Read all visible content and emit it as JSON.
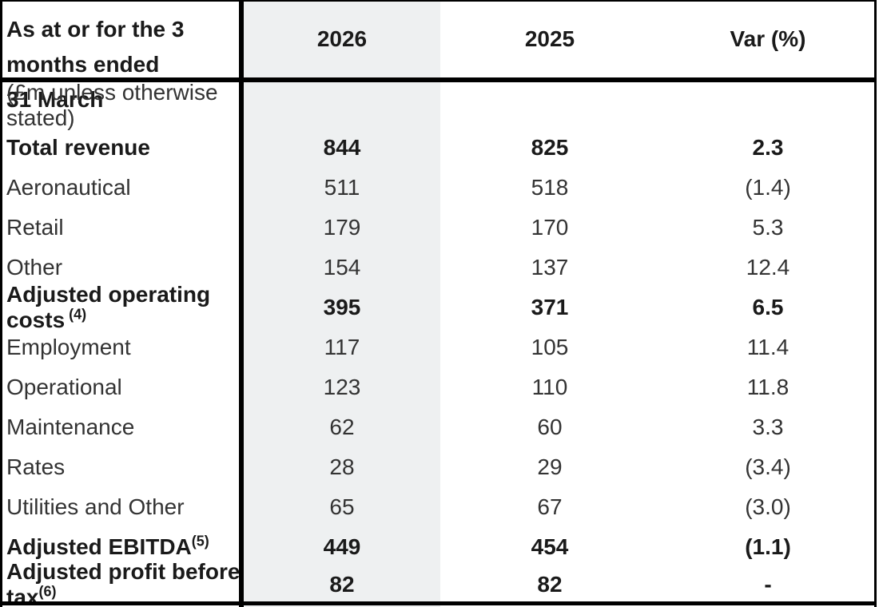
{
  "page": {
    "background": "#ffffff",
    "band_color": "#eef0f1",
    "border_color": "#000000"
  },
  "table": {
    "header": {
      "label_line1": "As at or for the 3 months ended",
      "label_line2": "31 March",
      "columns": [
        "2026",
        "2025",
        "Var (%)"
      ]
    },
    "unit_note": "(£m unless otherwise stated)",
    "rows": [
      {
        "label": "Total revenue",
        "sup": "",
        "bold": true,
        "y2026": "844",
        "y2025": "825",
        "var_pct": "2.3"
      },
      {
        "label": "Aeronautical",
        "sup": "",
        "bold": false,
        "y2026": "511",
        "y2025": "518",
        "var_pct": "(1.4)"
      },
      {
        "label": "Retail",
        "sup": "",
        "bold": false,
        "y2026": "179",
        "y2025": "170",
        "var_pct": "5.3"
      },
      {
        "label": "Other",
        "sup": "",
        "bold": false,
        "y2026": "154",
        "y2025": "137",
        "var_pct": "12.4"
      },
      {
        "label": "Adjusted operating costs",
        "sup": " (4)",
        "bold": true,
        "y2026": "395",
        "y2025": "371",
        "var_pct": "6.5"
      },
      {
        "label": "Employment",
        "sup": "",
        "bold": false,
        "y2026": "117",
        "y2025": "105",
        "var_pct": "11.4"
      },
      {
        "label": "Operational",
        "sup": "",
        "bold": false,
        "y2026": "123",
        "y2025": "110",
        "var_pct": "11.8"
      },
      {
        "label": "Maintenance",
        "sup": "",
        "bold": false,
        "y2026": "62",
        "y2025": "60",
        "var_pct": "3.3"
      },
      {
        "label": "Rates",
        "sup": "",
        "bold": false,
        "y2026": "28",
        "y2025": "29",
        "var_pct": "(3.4)"
      },
      {
        "label": "Utilities and Other",
        "sup": "",
        "bold": false,
        "y2026": "65",
        "y2025": "67",
        "var_pct": "(3.0)"
      },
      {
        "label": "Adjusted EBITDA",
        "sup": "(5)",
        "bold": true,
        "y2026": "449",
        "y2025": "454",
        "var_pct": "(1.1)"
      },
      {
        "label": "Adjusted profit before tax",
        "sup": "(6)",
        "bold": true,
        "y2026": "82",
        "y2025": "82",
        "var_pct": "-"
      }
    ]
  }
}
